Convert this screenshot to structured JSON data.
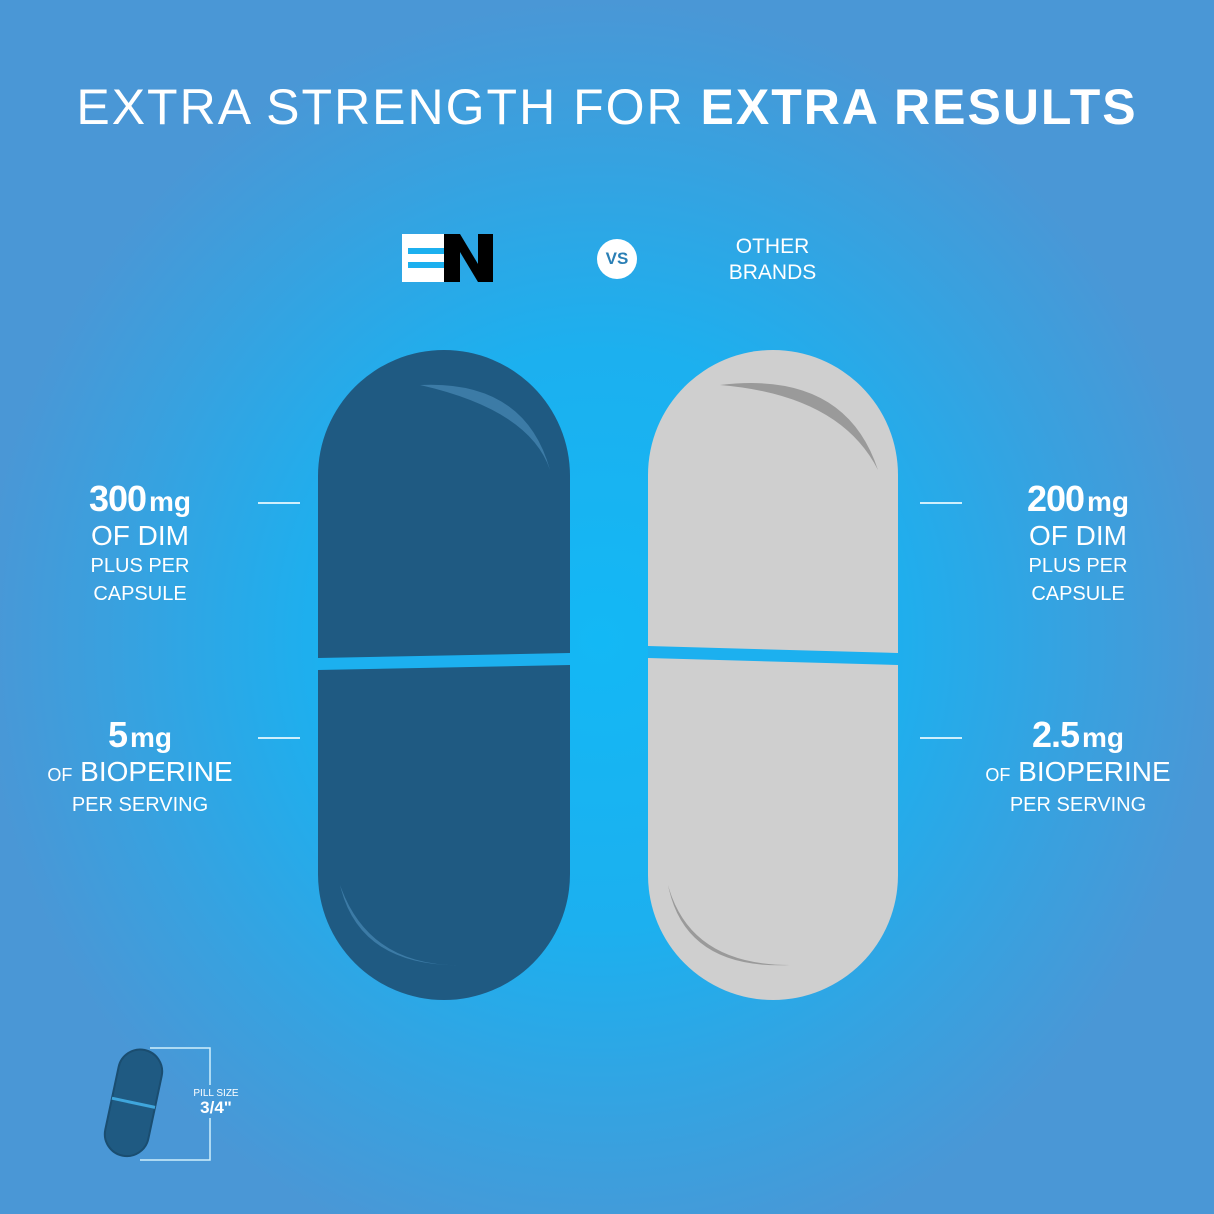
{
  "headline": {
    "light": "EXTRA STRENGTH FOR",
    "bold": "EXTRA RESULTS"
  },
  "brand_logo": "EN",
  "vs_label": "VS",
  "competitor_label": [
    "OTHER",
    "BRANDS"
  ],
  "left": {
    "dim": {
      "value": "300",
      "unit": "mg",
      "line1": "OF DIM",
      "line2": "PLUS PER",
      "line3": "CAPSULE"
    },
    "bioperine": {
      "value": "5",
      "unit": "mg",
      "prefix": "OF",
      "name": "BIOPERINE",
      "line2": "PER SERVING"
    },
    "pill_color": "#1f5a82"
  },
  "right": {
    "dim": {
      "value": "200",
      "unit": "mg",
      "line1": "OF DIM",
      "line2": "PLUS PER",
      "line3": "CAPSULE"
    },
    "bioperine": {
      "value": "2.5",
      "unit": "mg",
      "prefix": "OF",
      "name": "BIOPERINE",
      "line2": "PER SERVING"
    },
    "pill_color": "#cfcfcf"
  },
  "pill_size": {
    "label": "PILL SIZE",
    "value": "3/4\""
  }
}
